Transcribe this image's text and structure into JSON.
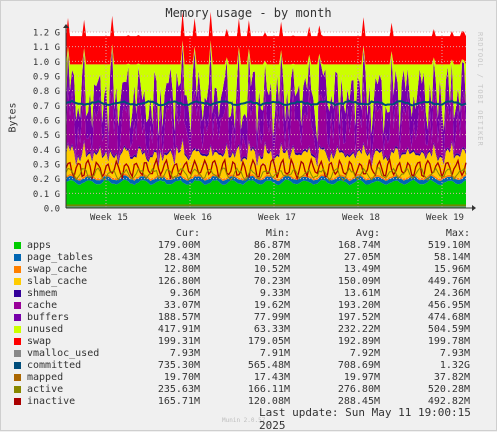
{
  "title": "Memory usage - by month",
  "watermark": "RRDTOOL / TOBI OETIKER",
  "footer": {
    "munin": "Munin 2.0.57",
    "last_update": "Last update:  Sun May 11 19:00:15 2025"
  },
  "legend_headers": {
    "cur": "Cur:",
    "min": "Min:",
    "avg": "Avg:",
    "max": "Max:"
  },
  "colors": {
    "apps": "#00cc00",
    "page_tables": "#0066b3",
    "swap_cache": "#ff8000",
    "slab_cache": "#ffcc00",
    "shmem": "#330099",
    "cache": "#990099",
    "buffers": "#7700aa",
    "unused": "#ccff00",
    "swap": "#ff0000",
    "vmalloc_used": "#888888",
    "committed": "#004d7a",
    "mapped": "#aa6600",
    "active": "#888800",
    "inactive": "#aa0000",
    "grid": "#ddaaaa",
    "axis": "#333333"
  },
  "legend": [
    {
      "name": "apps",
      "color": "#00cc00",
      "cur": "179.00M",
      "min": "86.87M",
      "avg": "168.74M",
      "max": "519.10M"
    },
    {
      "name": "page_tables",
      "color": "#0066b3",
      "cur": "28.43M",
      "min": "20.20M",
      "avg": "27.05M",
      "max": "58.14M"
    },
    {
      "name": "swap_cache",
      "color": "#ff8000",
      "cur": "12.80M",
      "min": "10.52M",
      "avg": "13.49M",
      "max": "15.96M"
    },
    {
      "name": "slab_cache",
      "color": "#ffcc00",
      "cur": "126.80M",
      "min": "70.23M",
      "avg": "150.09M",
      "max": "449.76M"
    },
    {
      "name": "shmem",
      "color": "#330099",
      "cur": "9.36M",
      "min": "9.33M",
      "avg": "13.61M",
      "max": "24.36M"
    },
    {
      "name": "cache",
      "color": "#990099",
      "cur": "33.07M",
      "min": "19.62M",
      "avg": "193.20M",
      "max": "456.95M"
    },
    {
      "name": "buffers",
      "color": "#7700aa",
      "cur": "188.57M",
      "min": "77.99M",
      "avg": "197.52M",
      "max": "474.68M"
    },
    {
      "name": "unused",
      "color": "#ccff00",
      "cur": "417.91M",
      "min": "63.33M",
      "avg": "232.22M",
      "max": "504.59M"
    },
    {
      "name": "swap",
      "color": "#ff0000",
      "cur": "199.31M",
      "min": "179.05M",
      "avg": "192.89M",
      "max": "199.78M"
    },
    {
      "name": "vmalloc_used",
      "color": "#888888",
      "cur": "7.93M",
      "min": "7.91M",
      "avg": "7.92M",
      "max": "7.93M"
    },
    {
      "name": "committed",
      "color": "#004d7a",
      "cur": "735.30M",
      "min": "565.48M",
      "avg": "708.69M",
      "max": "1.32G"
    },
    {
      "name": "mapped",
      "color": "#aa6600",
      "cur": "19.70M",
      "min": "17.43M",
      "avg": "19.97M",
      "max": "37.82M"
    },
    {
      "name": "active",
      "color": "#888800",
      "cur": "235.63M",
      "min": "166.11M",
      "avg": "276.80M",
      "max": "520.28M"
    },
    {
      "name": "inactive",
      "color": "#aa0000",
      "cur": "165.71M",
      "min": "120.08M",
      "avg": "288.45M",
      "max": "492.82M"
    }
  ],
  "chart_data": {
    "type": "area",
    "title": "Memory usage - by month",
    "ylabel": "Bytes",
    "xlabel": "",
    "x_ticks": [
      "Week 15",
      "Week 16",
      "Week 17",
      "Week 18",
      "Week 19"
    ],
    "y_ticks": [
      "0.0",
      "0.1 G",
      "0.2 G",
      "0.3 G",
      "0.4 G",
      "0.5 G",
      "0.6 G",
      "0.7 G",
      "0.8 G",
      "0.9 G",
      "1.0 G",
      "1.1 G",
      "1.2 G"
    ],
    "ylim": [
      0,
      1.2
    ],
    "y_unit": "G",
    "grid": true,
    "stacked_series_avg_G": [
      {
        "name": "apps",
        "value": 0.169
      },
      {
        "name": "page_tables",
        "value": 0.027
      },
      {
        "name": "swap_cache",
        "value": 0.013
      },
      {
        "name": "slab_cache",
        "value": 0.15
      },
      {
        "name": "shmem",
        "value": 0.014
      },
      {
        "name": "cache",
        "value": 0.193
      },
      {
        "name": "buffers",
        "value": 0.198
      },
      {
        "name": "unused",
        "value": 0.232
      },
      {
        "name": "swap",
        "value": 0.193
      }
    ],
    "line_series_avg_G": [
      {
        "name": "vmalloc_used",
        "value": 0.008
      },
      {
        "name": "committed",
        "value": 0.709
      },
      {
        "name": "mapped",
        "value": 0.02
      },
      {
        "name": "active",
        "value": 0.277
      },
      {
        "name": "inactive",
        "value": 0.288
      }
    ]
  }
}
